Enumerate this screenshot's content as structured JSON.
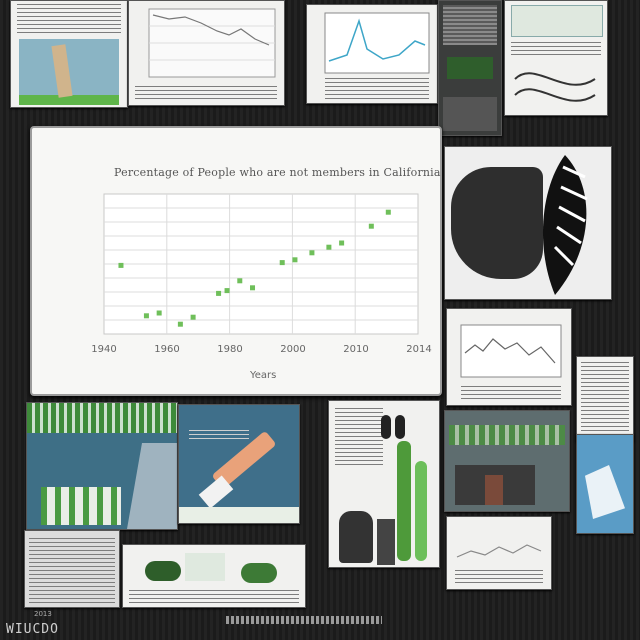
{
  "chart_data": {
    "type": "scatter",
    "title": "Percentage of People who are not members in California",
    "xlabel": "Years",
    "ylabel": "",
    "x_ticks": [
      "1940",
      "1960",
      "1980",
      "2000",
      "2010",
      "2014"
    ],
    "xlim": [
      1940,
      2014
    ],
    "ylim": [
      0,
      100
    ],
    "grid": true,
    "series": [
      {
        "color": "#6fbf5a",
        "points": [
          {
            "x": 1944,
            "y": 49
          },
          {
            "x": 1950,
            "y": 13
          },
          {
            "x": 1953,
            "y": 15
          },
          {
            "x": 1958,
            "y": 7
          },
          {
            "x": 1961,
            "y": 12
          },
          {
            "x": 1967,
            "y": 29
          },
          {
            "x": 1969,
            "y": 31
          },
          {
            "x": 1972,
            "y": 38
          },
          {
            "x": 1975,
            "y": 33
          },
          {
            "x": 1982,
            "y": 51
          },
          {
            "x": 1985,
            "y": 53
          },
          {
            "x": 1989,
            "y": 58
          },
          {
            "x": 1993,
            "y": 62
          },
          {
            "x": 1996,
            "y": 65
          },
          {
            "x": 2003,
            "y": 77
          },
          {
            "x": 2007,
            "y": 87
          }
        ]
      }
    ]
  },
  "footer": {
    "logo_text": "WIUCDO",
    "small_text": "2013"
  },
  "colors": {
    "board": "#1a1a1a",
    "accent_green": "#4e9a3a",
    "paper": "#f1f1ef"
  }
}
